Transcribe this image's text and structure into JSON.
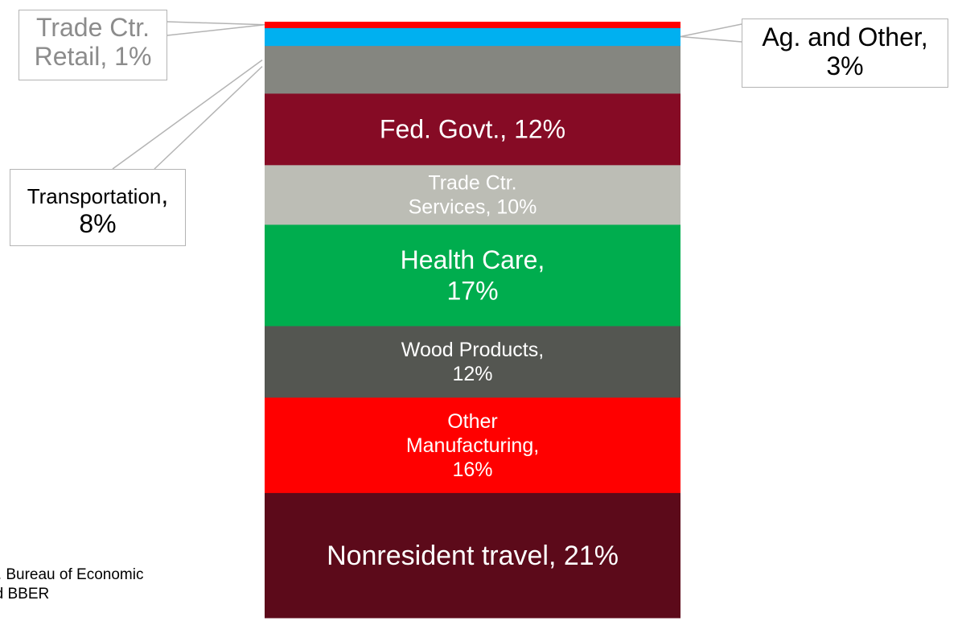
{
  "chart_data": {
    "type": "bar",
    "subtype": "single-stacked-100-percent",
    "unit": "%",
    "segments": [
      {
        "category": "Nonresident travel",
        "value": 21,
        "color": "#5c0a1a",
        "label_lines": [
          "Nonresident travel, 21%"
        ]
      },
      {
        "category": "Other Manufacturing",
        "value": 16,
        "color": "#ff0000",
        "label_lines": [
          "Other",
          "Manufacturing,",
          "16%"
        ]
      },
      {
        "category": "Wood Products",
        "value": 12,
        "color": "#545651",
        "label_lines": [
          "Wood Products,",
          "12%"
        ]
      },
      {
        "category": "Health Care",
        "value": 17,
        "color": "#00ad4e",
        "label_lines": [
          "Health Care,",
          "17%"
        ]
      },
      {
        "category": "Trade Ctr. Services",
        "value": 10,
        "color": "#bcbdb5",
        "label_lines": [
          "Trade Ctr.",
          "Services, 10%"
        ]
      },
      {
        "category": "Fed. Govt.",
        "value": 12,
        "color": "#860b25",
        "label_lines": [
          "Fed. Govt., 12%"
        ]
      },
      {
        "category": "Transportation",
        "value": 8,
        "color": "#858680",
        "label_lines": []
      },
      {
        "category": "Ag. and Other",
        "value": 3,
        "color": "#00b0f0",
        "label_lines": []
      },
      {
        "category": "Trade Ctr. Retail",
        "value": 1,
        "color": "#ff0000",
        "label_lines": []
      }
    ]
  },
  "callouts": {
    "retail": {
      "line1": "Trade Ctr.",
      "line2": "Retail, 1%"
    },
    "ag": {
      "line1": "Ag. and Other,",
      "line2": "3%"
    },
    "transport": {
      "line1": "Transportation",
      "comma": ",",
      "line2": "8%"
    }
  },
  "source": {
    "line1": "e:  U.S. Bureau of Economic",
    "line2": "sis and BBER"
  }
}
